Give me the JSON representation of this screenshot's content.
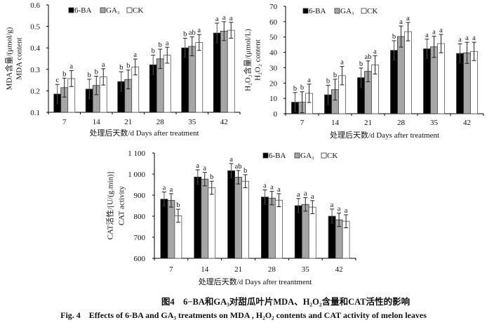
{
  "caption": {
    "cn": "图4　6−BA和GA₃对甜瓜叶片MDA、H₂O₂含量和CAT活性的影响",
    "en": "Fig. 4　Effects of 6-BA and GA₃ treatments on MDA , H₂O₂ contents and CAT activity of melon leaves"
  },
  "colors": {
    "6-BA": "#000000",
    "GA3": "#a6a6a6",
    "CK": "#ffffff"
  },
  "chart_data": [
    {
      "type": "bar",
      "title": "",
      "ylabel_cn": "MDA含量/(μmol/g)",
      "ylabel_en": "MDA content",
      "xlabel": "处理后天数/d Days after treatment",
      "categories": [
        "7",
        "14",
        "21",
        "28",
        "35",
        "42"
      ],
      "ylim": [
        0.1,
        0.6
      ],
      "yticks": [
        0.1,
        0.2,
        0.3,
        0.4,
        0.5,
        0.6
      ],
      "ytick_labels": [
        "0.1",
        "0.2",
        "0.3",
        "0.4",
        "0.5",
        "0.6"
      ],
      "legend_position": "top-left",
      "grid": false,
      "series": [
        {
          "name": "6-BA",
          "legend_label": "6-BA",
          "values": [
            0.185,
            0.208,
            0.243,
            0.321,
            0.4,
            0.469
          ],
          "errors": [
            0.045,
            0.046,
            0.046,
            0.045,
            0.045,
            0.046
          ],
          "letters": [
            "c",
            "b",
            "b",
            "b",
            "b",
            "a"
          ]
        },
        {
          "name": "GA3",
          "legend_label": "GA₃",
          "values": [
            0.215,
            0.225,
            0.253,
            0.349,
            0.407,
            0.478
          ],
          "errors": [
            0.044,
            0.043,
            0.044,
            0.045,
            0.044,
            0.044
          ],
          "letters": [
            "b",
            "b",
            "b",
            "b",
            "ab",
            "a"
          ]
        },
        {
          "name": "CK",
          "legend_label": "CK",
          "values": [
            0.257,
            0.265,
            0.311,
            0.366,
            0.425,
            0.482
          ],
          "errors": [
            0.037,
            0.038,
            0.037,
            0.037,
            0.037,
            0.037
          ],
          "letters": [
            "a",
            "a",
            "a",
            "a",
            "a",
            "a"
          ]
        }
      ]
    },
    {
      "type": "bar",
      "title": "",
      "ylabel_cn": "H₂O₂含量/(μmol/L)",
      "ylabel_en": "H₂O₂ content",
      "xlabel": "处理后天数/d Days after treatment",
      "categories": [
        "7",
        "14",
        "21",
        "28",
        "35",
        "42"
      ],
      "ylim": [
        0,
        70
      ],
      "yticks": [
        0,
        10,
        20,
        30,
        40,
        50,
        60,
        70
      ],
      "ytick_labels": [
        "0",
        "10",
        "20",
        "30",
        "40",
        "50",
        "60",
        "70"
      ],
      "legend_position": "top-left",
      "grid": false,
      "series": [
        {
          "name": "6-BA",
          "legend_label": "6-BA",
          "values": [
            7.5,
            12.3,
            23.5,
            41.3,
            42.3,
            39.3
          ],
          "errors": [
            6.3,
            6.3,
            6.3,
            6.3,
            6.3,
            6.3
          ],
          "letters": [
            "b",
            "b",
            "b",
            "b",
            "a",
            "a"
          ]
        },
        {
          "name": "GA3",
          "legend_label": "GA₃",
          "values": [
            7.5,
            15.7,
            27.6,
            50.3,
            43.6,
            39.7
          ],
          "errors": [
            6.8,
            6.8,
            6.8,
            6.9,
            6.9,
            6.9
          ],
          "letters": [
            "b",
            "b",
            "ab",
            "a",
            "a",
            "a"
          ]
        },
        {
          "name": "CK",
          "legend_label": "CK",
          "values": [
            13.3,
            24.8,
            31.8,
            53.5,
            45.7,
            40.6
          ],
          "errors": [
            6.0,
            6.0,
            6.0,
            6.0,
            6.0,
            6.0
          ],
          "letters": [
            "a",
            "a",
            "a",
            "a",
            "a",
            "a"
          ]
        }
      ]
    },
    {
      "type": "bar",
      "title": "",
      "ylabel_cn": "CAT活性/[U/(g.min)]",
      "ylabel_en": "CAT activity",
      "xlabel": "处理后天数/d Days after treantment",
      "categories": [
        "7",
        "14",
        "21",
        "28",
        "35",
        "42"
      ],
      "ylim": [
        600,
        1100
      ],
      "yticks": [
        600,
        700,
        800,
        900,
        1000,
        1100
      ],
      "ytick_labels": [
        "600",
        "700",
        "800",
        "900",
        "1 000",
        "1 100"
      ],
      "legend_position": "top-right",
      "grid": false,
      "series": [
        {
          "name": "6-BA",
          "legend_label": "6-BA",
          "values": [
            881,
            986,
            1016,
            891,
            850,
            800
          ],
          "errors": [
            34,
            34,
            34,
            34,
            34,
            34
          ],
          "letters": [
            "a",
            "a",
            "a",
            "a",
            "a",
            "a"
          ]
        },
        {
          "name": "GA3",
          "legend_label": "GA₃",
          "values": [
            875,
            976,
            985,
            886,
            856,
            783
          ],
          "errors": [
            32,
            32,
            32,
            32,
            32,
            32
          ],
          "letters": [
            "a",
            "a",
            "ab",
            "a",
            "a",
            "a"
          ]
        },
        {
          "name": "CK",
          "legend_label": "CK",
          "values": [
            802,
            935,
            966,
            876,
            843,
            776
          ],
          "errors": [
            31,
            31,
            31,
            31,
            31,
            31
          ],
          "letters": [
            "b",
            "b",
            "b",
            "a",
            "a",
            "a"
          ]
        }
      ]
    }
  ]
}
